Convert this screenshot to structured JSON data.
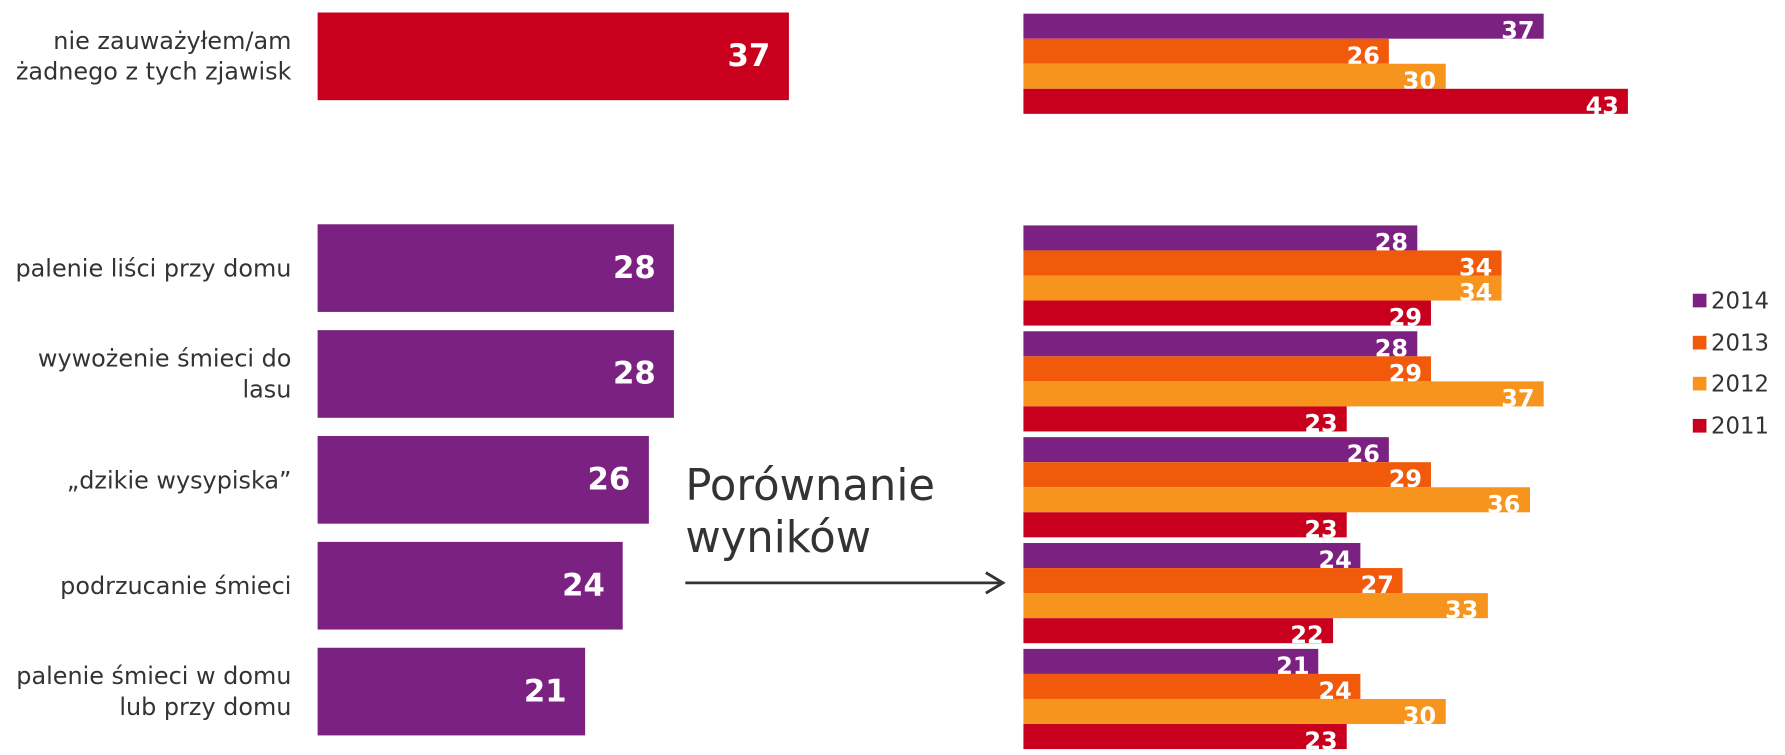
{
  "chart_data": [
    {
      "type": "bar",
      "orientation": "horizontal",
      "categories": [
        "nie zauważyłem/am żadnego z tych zjawisk",
        "palenie liści przy domu",
        "wywożenie śmieci do lasu",
        "„dzikie wysypiska”",
        "podrzucanie śmieci",
        "palenie śmieci w domu lub przy domu"
      ],
      "values": [
        37,
        28,
        28,
        26,
        24,
        21
      ],
      "colors": [
        "#c8001e",
        "#7b2182",
        "#7b2182",
        "#7b2182",
        "#7b2182",
        "#7b2182"
      ]
    },
    {
      "type": "grouped-bar",
      "orientation": "horizontal",
      "legend": "right",
      "annotation": "Porównanie wyników",
      "series": [
        {
          "name": "2014",
          "color": "#7b2182",
          "values": [
            37,
            28,
            28,
            26,
            24,
            21
          ]
        },
        {
          "name": "2013",
          "color": "#f05a0a",
          "values": [
            26,
            34,
            29,
            29,
            27,
            24
          ]
        },
        {
          "name": "2012",
          "color": "#f7941d",
          "values": [
            30,
            34,
            37,
            36,
            33,
            30
          ]
        },
        {
          "name": "2011",
          "color": "#c8001e",
          "values": [
            43,
            29,
            23,
            23,
            22,
            23
          ]
        }
      ]
    }
  ]
}
